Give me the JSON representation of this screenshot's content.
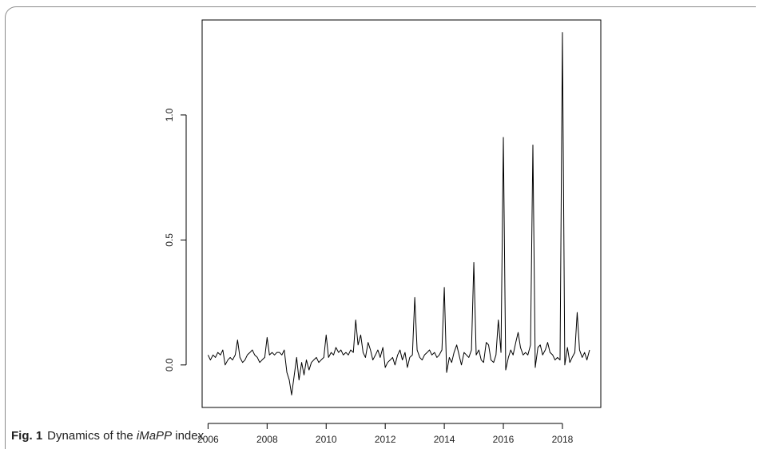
{
  "caption": {
    "label": "Fig. 1",
    "text_before": "Dynamics of the ",
    "text_italic": "iMaPP",
    "text_after": " index"
  },
  "chart_data": {
    "type": "line",
    "title": "",
    "xlabel": "",
    "ylabel": "",
    "xlim": [
      2005.8,
      2019.3
    ],
    "ylim": [
      -0.17,
      1.38
    ],
    "x_ticks": [
      2006,
      2008,
      2010,
      2012,
      2014,
      2016,
      2018
    ],
    "x_tick_labels": [
      "2006",
      "2008",
      "2010",
      "2012",
      "2014",
      "2016",
      "2018"
    ],
    "y_ticks": [
      0.0,
      0.5,
      1.0
    ],
    "y_tick_labels": [
      "0.0",
      "0.5",
      "1.0"
    ],
    "grid": false,
    "line_color": "#000000",
    "series": [
      {
        "x": [
          2006.0,
          2006.08,
          2006.17,
          2006.25,
          2006.33,
          2006.42,
          2006.5,
          2006.58,
          2006.67,
          2006.75,
          2006.83,
          2006.92,
          2007.0,
          2007.08,
          2007.17,
          2007.25,
          2007.33,
          2007.42,
          2007.5,
          2007.58,
          2007.67,
          2007.75,
          2007.83,
          2007.92,
          2008.0,
          2008.08,
          2008.17,
          2008.25,
          2008.33,
          2008.42,
          2008.5,
          2008.58,
          2008.67,
          2008.75,
          2008.83,
          2008.92,
          2009.0,
          2009.08,
          2009.17,
          2009.25,
          2009.33,
          2009.42,
          2009.5,
          2009.58,
          2009.67,
          2009.75,
          2009.83,
          2009.92,
          2010.0,
          2010.08,
          2010.17,
          2010.25,
          2010.33,
          2010.42,
          2010.5,
          2010.58,
          2010.67,
          2010.75,
          2010.83,
          2010.92,
          2011.0,
          2011.08,
          2011.17,
          2011.25,
          2011.33,
          2011.42,
          2011.5,
          2011.58,
          2011.67,
          2011.75,
          2011.83,
          2011.92,
          2012.0,
          2012.08,
          2012.17,
          2012.25,
          2012.33,
          2012.42,
          2012.5,
          2012.58,
          2012.67,
          2012.75,
          2012.83,
          2012.92,
          2013.0,
          2013.08,
          2013.17,
          2013.25,
          2013.33,
          2013.42,
          2013.5,
          2013.58,
          2013.67,
          2013.75,
          2013.83,
          2013.92,
          2014.0,
          2014.08,
          2014.17,
          2014.25,
          2014.33,
          2014.42,
          2014.5,
          2014.58,
          2014.67,
          2014.75,
          2014.83,
          2014.92,
          2015.0,
          2015.08,
          2015.17,
          2015.25,
          2015.33,
          2015.42,
          2015.5,
          2015.58,
          2015.67,
          2015.75,
          2015.83,
          2015.92,
          2016.0,
          2016.08,
          2016.17,
          2016.25,
          2016.33,
          2016.42,
          2016.5,
          2016.58,
          2016.67,
          2016.75,
          2016.83,
          2016.92,
          2017.0,
          2017.08,
          2017.17,
          2017.25,
          2017.33,
          2017.42,
          2017.5,
          2017.58,
          2017.67,
          2017.75,
          2017.83,
          2017.92,
          2018.0,
          2018.08,
          2018.17,
          2018.25,
          2018.33,
          2018.42,
          2018.5,
          2018.58,
          2018.67,
          2018.75,
          2018.83,
          2018.92
        ],
        "y": [
          0.04,
          0.02,
          0.04,
          0.03,
          0.05,
          0.04,
          0.06,
          0.0,
          0.02,
          0.03,
          0.02,
          0.04,
          0.1,
          0.03,
          0.01,
          0.02,
          0.04,
          0.05,
          0.06,
          0.04,
          0.03,
          0.01,
          0.02,
          0.03,
          0.11,
          0.04,
          0.05,
          0.04,
          0.05,
          0.05,
          0.04,
          0.06,
          -0.03,
          -0.06,
          -0.12,
          -0.04,
          0.03,
          -0.06,
          0.01,
          -0.04,
          0.02,
          -0.02,
          0.01,
          0.02,
          0.03,
          0.01,
          0.02,
          0.03,
          0.12,
          0.03,
          0.05,
          0.04,
          0.07,
          0.05,
          0.06,
          0.04,
          0.05,
          0.04,
          0.06,
          0.05,
          0.18,
          0.08,
          0.12,
          0.05,
          0.03,
          0.09,
          0.06,
          0.02,
          0.04,
          0.06,
          0.03,
          0.07,
          -0.01,
          0.01,
          0.02,
          0.03,
          0.0,
          0.04,
          0.06,
          0.02,
          0.05,
          -0.01,
          0.03,
          0.04,
          0.27,
          0.06,
          0.03,
          0.02,
          0.04,
          0.05,
          0.06,
          0.04,
          0.05,
          0.03,
          0.04,
          0.06,
          0.31,
          -0.03,
          0.03,
          0.01,
          0.05,
          0.08,
          0.04,
          0.0,
          0.05,
          0.04,
          0.03,
          0.06,
          0.41,
          0.04,
          0.06,
          0.02,
          0.01,
          0.09,
          0.08,
          0.02,
          0.01,
          0.04,
          0.18,
          0.05,
          0.91,
          -0.02,
          0.03,
          0.06,
          0.04,
          0.09,
          0.13,
          0.07,
          0.04,
          0.05,
          0.04,
          0.08,
          0.88,
          -0.01,
          0.07,
          0.08,
          0.04,
          0.06,
          0.09,
          0.05,
          0.04,
          0.02,
          0.03,
          0.02,
          1.33,
          0.0,
          0.07,
          0.01,
          0.03,
          0.05,
          0.21,
          0.06,
          0.03,
          0.05,
          0.02,
          0.06
        ]
      }
    ]
  }
}
